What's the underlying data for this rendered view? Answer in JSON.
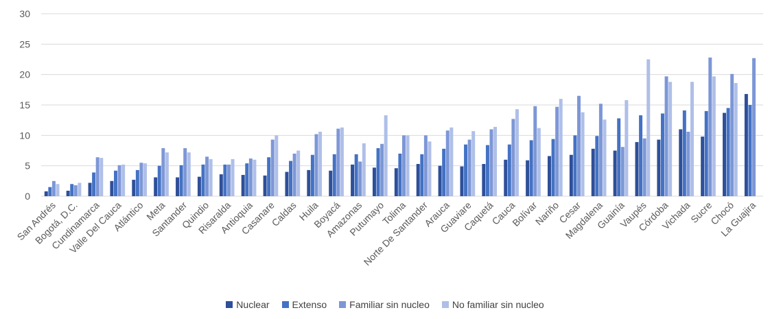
{
  "chart_data": {
    "type": "bar",
    "categories": [
      "San Andrés",
      "Bogotá, D.C.",
      "Cundinamarca",
      "Valle Del Cauca",
      "Atlántico",
      "Meta",
      "Santander",
      "Quindio",
      "Risaralda",
      "Antioquia",
      "Casanare",
      "Caldas",
      "Huila",
      "Boyacá",
      "Amazonas",
      "Putumayo",
      "Tolima",
      "Norte De Santander",
      "Arauca",
      "Guaviare",
      "Caquetá",
      "Cauca",
      "Bolívar",
      "Nariño",
      "Cesar",
      "Magdalena",
      "Guainía",
      "Vaupés",
      "Córdoba",
      "Vichada",
      "Sucre",
      "Chocó",
      "La Guajira"
    ],
    "series": [
      {
        "name": "Nuclear",
        "color": "#2e4f99",
        "values": [
          0.8,
          0.9,
          2.2,
          2.5,
          2.7,
          3.1,
          3.1,
          3.2,
          3.6,
          3.5,
          3.4,
          4.0,
          4.3,
          4.2,
          5.2,
          4.7,
          4.6,
          5.3,
          5.0,
          4.9,
          5.3,
          6.0,
          5.9,
          6.6,
          6.8,
          7.8,
          7.5,
          8.9,
          9.3,
          11.0,
          9.8,
          13.7,
          16.8
        ]
      },
      {
        "name": "Extenso",
        "color": "#4472c4",
        "values": [
          1.5,
          2.0,
          3.9,
          4.2,
          4.3,
          5.0,
          5.1,
          5.2,
          5.2,
          5.4,
          6.4,
          5.8,
          6.8,
          6.9,
          6.9,
          7.9,
          7.0,
          6.9,
          7.8,
          8.5,
          8.4,
          8.5,
          9.2,
          9.4,
          10.0,
          9.9,
          12.8,
          13.3,
          13.6,
          14.1,
          14.0,
          14.5,
          15.0
        ]
      },
      {
        "name": "Familiar sin nucleo",
        "color": "#7d97d6",
        "values": [
          2.5,
          1.8,
          6.4,
          5.1,
          5.5,
          7.9,
          7.9,
          6.5,
          5.2,
          6.2,
          9.3,
          7.0,
          10.2,
          11.1,
          5.7,
          8.6,
          10.0,
          10.0,
          10.8,
          9.3,
          11.0,
          12.7,
          14.8,
          14.7,
          16.5,
          15.2,
          8.1,
          9.5,
          19.7,
          10.6,
          22.8,
          20.1,
          22.7
        ]
      },
      {
        "name": "No familiar sin nucleo",
        "color": "#afbfe8",
        "values": [
          2.0,
          2.2,
          6.3,
          5.2,
          5.4,
          7.2,
          7.2,
          6.1,
          6.1,
          6.0,
          10.0,
          7.5,
          10.6,
          11.3,
          8.7,
          13.3,
          10.0,
          9.0,
          11.3,
          10.7,
          11.4,
          14.3,
          11.2,
          16.0,
          13.8,
          12.6,
          15.8,
          22.5,
          18.8,
          18.8,
          19.7,
          18.6,
          null
        ]
      }
    ],
    "title": "",
    "xlabel": "",
    "ylabel": "",
    "ylim": [
      0,
      30
    ],
    "yticks": [
      "0",
      "5",
      "10",
      "15",
      "20",
      "25",
      "30"
    ],
    "grid": true,
    "legend_position": "bottom"
  }
}
